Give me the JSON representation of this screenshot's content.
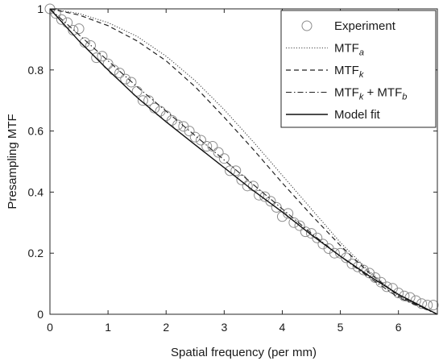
{
  "chart_data": {
    "type": "line",
    "xlabel": "Spatial frequency (per mm)",
    "ylabel": "Presampling MTF",
    "xlim": [
      0,
      6.67
    ],
    "ylim": [
      0,
      1
    ],
    "xticks": [
      0,
      1,
      2,
      3,
      4,
      5,
      6
    ],
    "yticks": [
      0,
      0.2,
      0.4,
      0.6,
      0.8,
      1
    ],
    "xtick_labels": [
      "0",
      "1",
      "2",
      "3",
      "4",
      "5",
      "6"
    ],
    "ytick_labels": [
      "0",
      "0.2",
      "0.4",
      "0.6",
      "0.8",
      "1"
    ],
    "grid": false,
    "legend_position": "top-right",
    "legend": [
      {
        "key": "experiment",
        "label": "Experiment",
        "sub": ""
      },
      {
        "key": "mtf_a",
        "label": "MTF",
        "sub": "a"
      },
      {
        "key": "mtf_k",
        "label": "MTF",
        "sub": "k"
      },
      {
        "key": "mtf_kb",
        "label": "MTF",
        "sub": "k",
        "label2": " + MTF",
        "sub2": "b"
      },
      {
        "key": "model_fit",
        "label": "Model fit",
        "sub": ""
      }
    ],
    "series": [
      {
        "key": "experiment",
        "style": "markers",
        "x": [
          0.0,
          0.1,
          0.2,
          0.3,
          0.4,
          0.5,
          0.6,
          0.7,
          0.8,
          0.9,
          1.0,
          1.1,
          1.2,
          1.3,
          1.4,
          1.5,
          1.6,
          1.7,
          1.8,
          1.9,
          2.0,
          2.1,
          2.2,
          2.3,
          2.4,
          2.5,
          2.6,
          2.7,
          2.8,
          2.9,
          3.0,
          3.1,
          3.2,
          3.3,
          3.4,
          3.5,
          3.6,
          3.7,
          3.8,
          3.9,
          4.0,
          4.1,
          4.2,
          4.3,
          4.4,
          4.5,
          4.6,
          4.7,
          4.8,
          4.9,
          5.0,
          5.1,
          5.2,
          5.3,
          5.4,
          5.5,
          5.6,
          5.7,
          5.8,
          5.9,
          6.0,
          6.1,
          6.2,
          6.3,
          6.4,
          6.5,
          6.6
        ],
        "y": [
          1.0,
          0.985,
          0.965,
          0.955,
          0.93,
          0.935,
          0.89,
          0.88,
          0.84,
          0.845,
          0.82,
          0.8,
          0.79,
          0.77,
          0.76,
          0.73,
          0.7,
          0.7,
          0.675,
          0.665,
          0.65,
          0.635,
          0.62,
          0.615,
          0.6,
          0.58,
          0.57,
          0.55,
          0.55,
          0.53,
          0.51,
          0.47,
          0.47,
          0.44,
          0.42,
          0.42,
          0.39,
          0.385,
          0.37,
          0.35,
          0.32,
          0.33,
          0.3,
          0.29,
          0.27,
          0.265,
          0.25,
          0.23,
          0.215,
          0.2,
          0.2,
          0.185,
          0.165,
          0.155,
          0.145,
          0.135,
          0.12,
          0.105,
          0.09,
          0.085,
          0.07,
          0.06,
          0.055,
          0.045,
          0.035,
          0.03,
          0.03
        ]
      },
      {
        "key": "mtf_a",
        "style": "dotted",
        "x": [
          0,
          0.5,
          1,
          1.5,
          2,
          2.5,
          3,
          3.5,
          4,
          4.5,
          5,
          5.5,
          6,
          6.67
        ],
        "y": [
          1,
          0.985,
          0.955,
          0.91,
          0.845,
          0.765,
          0.67,
          0.565,
          0.455,
          0.345,
          0.235,
          0.14,
          0.06,
          0.0
        ]
      },
      {
        "key": "mtf_k",
        "style": "dashed",
        "x": [
          0,
          0.5,
          1,
          1.5,
          2,
          2.5,
          3,
          3.5,
          4,
          4.5,
          5,
          5.5,
          6,
          6.67
        ],
        "y": [
          1,
          0.98,
          0.945,
          0.895,
          0.83,
          0.745,
          0.645,
          0.54,
          0.43,
          0.325,
          0.225,
          0.135,
          0.06,
          0.0
        ]
      },
      {
        "key": "mtf_kb",
        "style": "dashdot",
        "x": [
          0,
          0.5,
          1,
          1.5,
          2,
          2.5,
          3,
          3.5,
          4,
          4.5,
          5,
          5.5,
          6,
          6.67
        ],
        "y": [
          1,
          0.915,
          0.83,
          0.745,
          0.665,
          0.585,
          0.505,
          0.425,
          0.345,
          0.265,
          0.19,
          0.12,
          0.055,
          0.0
        ]
      },
      {
        "key": "model_fit",
        "style": "solid",
        "x": [
          0,
          0.5,
          1,
          1.5,
          2,
          2.5,
          3,
          3.5,
          4,
          4.5,
          5,
          5.5,
          6,
          6.67
        ],
        "y": [
          1,
          0.895,
          0.8,
          0.71,
          0.63,
          0.555,
          0.48,
          0.405,
          0.335,
          0.26,
          0.19,
          0.125,
          0.065,
          0.0
        ]
      }
    ]
  }
}
